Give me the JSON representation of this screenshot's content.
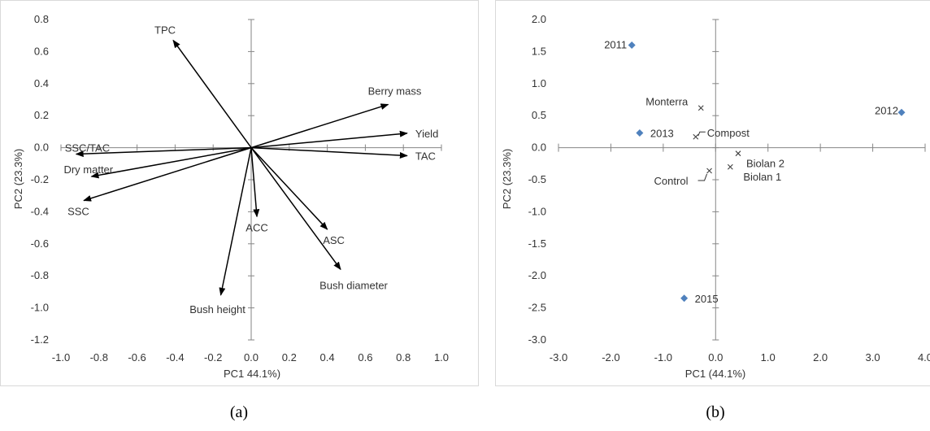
{
  "chart_data": [
    {
      "type": "biplot",
      "panel_label": "(a)",
      "xlabel": "PC1 44.1%)",
      "ylabel": "PC2 (23.3%)",
      "xlim": [
        -1.0,
        1.0
      ],
      "ylim": [
        -1.2,
        0.8
      ],
      "x_ticks": [
        "-1.0",
        "-0.8",
        "-0.6",
        "-0.4",
        "-0.2",
        "0.0",
        "0.2",
        "0.4",
        "0.6",
        "0.8",
        "1.0"
      ],
      "y_ticks": [
        "0.8",
        "0.6",
        "0.4",
        "0.2",
        "0.0",
        "-0.2",
        "-0.4",
        "-0.6",
        "-0.8",
        "-1.0",
        "-1.2"
      ],
      "vectors": [
        {
          "label": "TPC",
          "x": -0.41,
          "y": 0.67
        },
        {
          "label": "Berry mass",
          "x": 0.72,
          "y": 0.27
        },
        {
          "label": "Yield",
          "x": 0.82,
          "y": 0.09
        },
        {
          "label": "TAC",
          "x": 0.82,
          "y": -0.05
        },
        {
          "label": "SSC/TAC",
          "x": -0.92,
          "y": -0.04
        },
        {
          "label": "Dry matter",
          "x": -0.84,
          "y": -0.18
        },
        {
          "label": "SSC",
          "x": -0.88,
          "y": -0.33
        },
        {
          "label": "ACC",
          "x": 0.03,
          "y": -0.43
        },
        {
          "label": "ASC",
          "x": 0.4,
          "y": -0.51
        },
        {
          "label": "Bush diameter",
          "x": 0.47,
          "y": -0.76
        },
        {
          "label": "Bush height",
          "x": -0.16,
          "y": -0.92
        }
      ]
    },
    {
      "type": "scatter",
      "panel_label": "(b)",
      "xlabel": "PC1 (44.1%)",
      "ylabel": "PC2 (23.3%)",
      "xlim": [
        -3.0,
        4.0
      ],
      "ylim": [
        -3.0,
        2.0
      ],
      "x_ticks": [
        "-3.0",
        "-2.0",
        "-1.0",
        "0.0",
        "1.0",
        "2.0",
        "3.0",
        "4.0"
      ],
      "y_ticks": [
        "2.0",
        "1.5",
        "1.0",
        "0.5",
        "0.0",
        "-0.5",
        "-1.0",
        "-1.5",
        "-2.0",
        "-2.5",
        "-3.0"
      ],
      "series": [
        {
          "marker": "diamond",
          "color": "#4f81bd",
          "points": [
            {
              "label": "2011",
              "x": -1.6,
              "y": 1.6
            },
            {
              "label": "2012",
              "x": 3.55,
              "y": 0.55
            },
            {
              "label": "2013",
              "x": -1.45,
              "y": 0.23
            },
            {
              "label": "2015",
              "x": -0.6,
              "y": -2.35
            }
          ]
        },
        {
          "marker": "x",
          "color": "#404040",
          "points": [
            {
              "label": "Monterra",
              "x": -0.28,
              "y": 0.62
            },
            {
              "label": "Compost",
              "x": -0.38,
              "y": 0.17
            },
            {
              "label": "Biolan 2",
              "x": 0.43,
              "y": -0.09
            },
            {
              "label": "Biolan 1",
              "x": 0.28,
              "y": -0.3
            },
            {
              "label": "Control",
              "x": -0.12,
              "y": -0.36
            }
          ]
        }
      ]
    }
  ]
}
